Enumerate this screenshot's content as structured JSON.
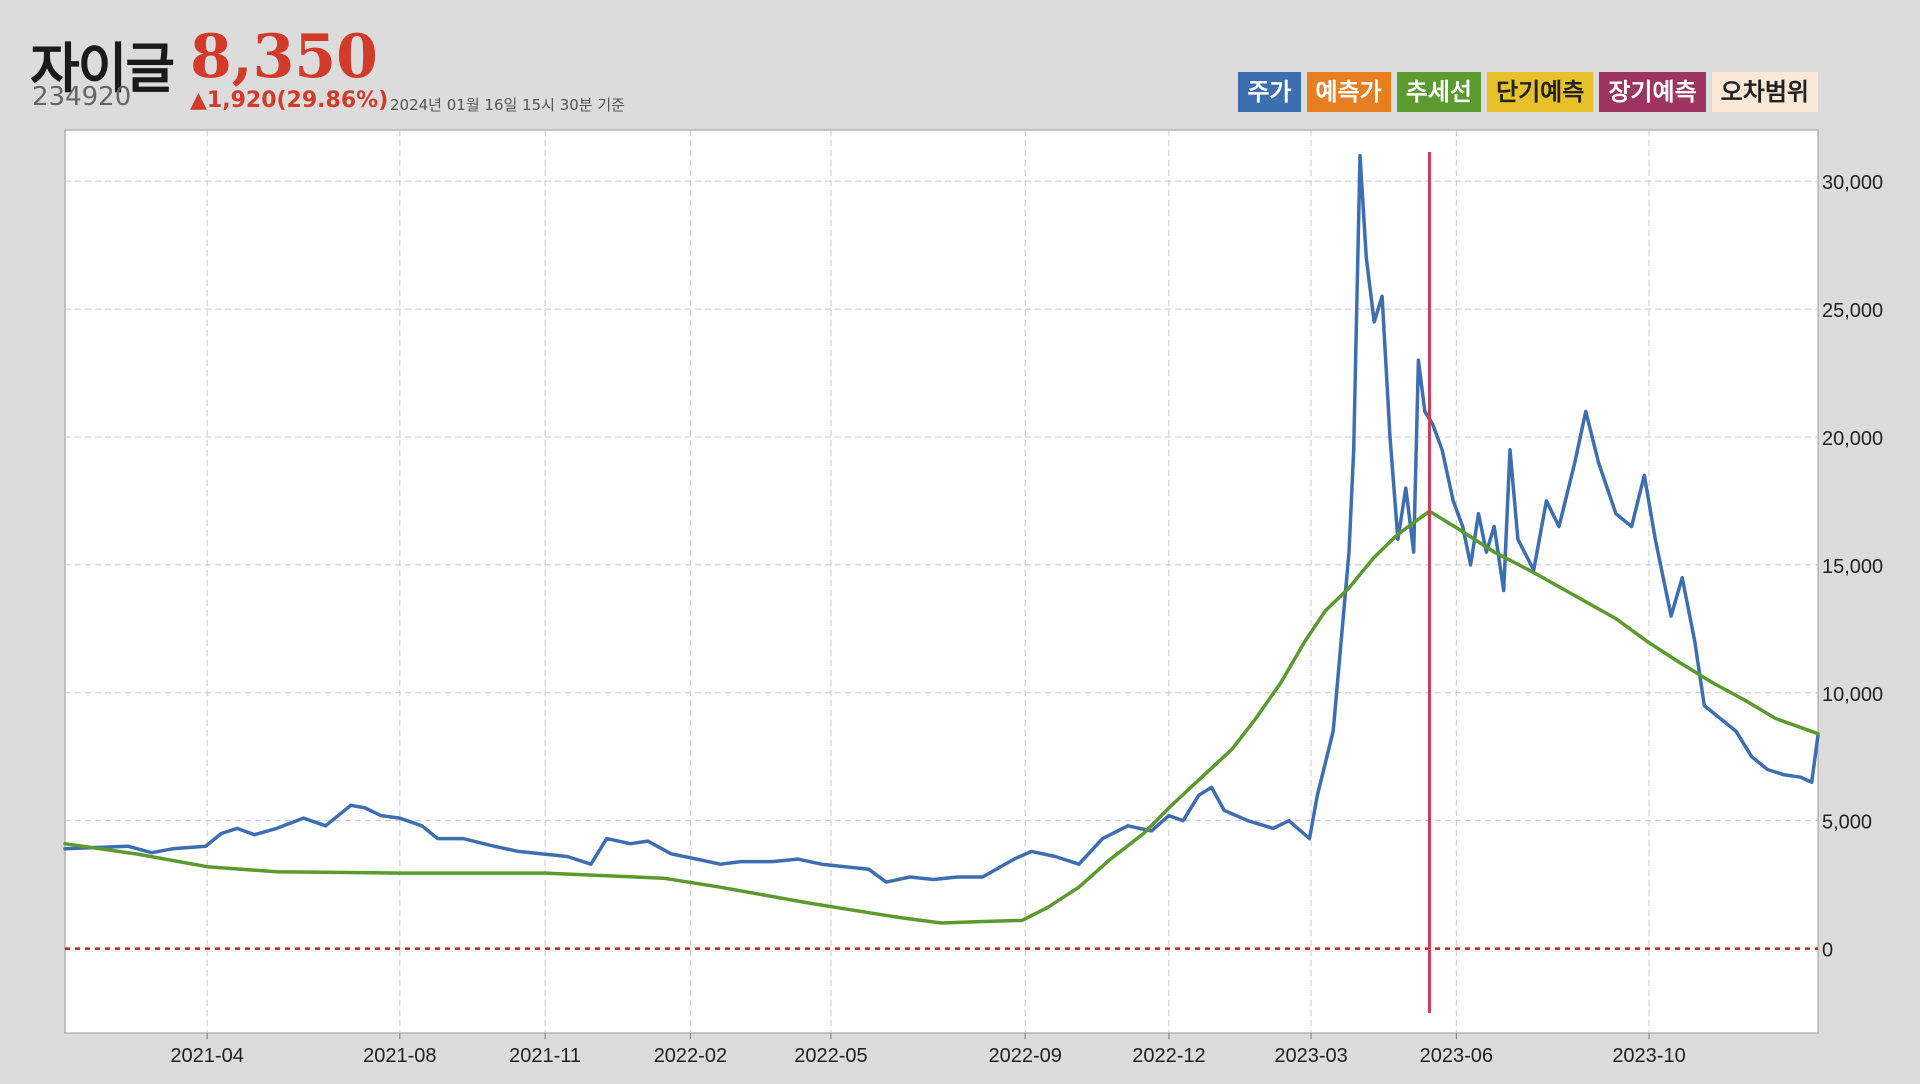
{
  "header": {
    "name": "자이글",
    "price": "8,350",
    "code": "234920",
    "change": "▲1,920(29.86%)",
    "asof": "2024년 01월 16일 15시 30분 기준"
  },
  "legend": [
    {
      "label": "주가",
      "color": "#3d6eb0",
      "text_color": "#ffffff"
    },
    {
      "label": "예측가",
      "color": "#e67e22",
      "text_color": "#ffffff"
    },
    {
      "label": "추세선",
      "color": "#5a9a2f",
      "text_color": "#ffffff"
    },
    {
      "label": "단기예측",
      "color": "#e8c02a",
      "text_color": "#222222"
    },
    {
      "label": "장기예측",
      "color": "#9e3461",
      "text_color": "#ffffff"
    },
    {
      "label": "오차범위",
      "color": "#fbe9d8",
      "text_color": "#222222"
    }
  ],
  "chart_data": {
    "type": "line",
    "ylim": [
      -3300,
      32000
    ],
    "xlim": [
      "2021-01-01",
      "2024-01-16"
    ],
    "y_ticks": [
      0,
      5000,
      10000,
      15000,
      20000,
      25000,
      30000
    ],
    "y_tick_labels": [
      "0",
      "5,000",
      "10,000",
      "15,000",
      "20,000",
      "25,000",
      "30,000"
    ],
    "x_ticks": [
      "2021-04-01",
      "2021-08-01",
      "2021-11-01",
      "2022-02-01",
      "2022-05-01",
      "2022-09-01",
      "2022-12-01",
      "2023-03-01",
      "2023-06-01",
      "2023-10-01"
    ],
    "x_tick_labels": [
      "2021-04",
      "2021-08",
      "2021-11",
      "2022-02",
      "2022-05",
      "2022-09",
      "2022-12",
      "2023-03",
      "2023-06",
      "2023-10"
    ],
    "grid": true,
    "zero_line": {
      "y": 0,
      "color": "#d01c1c"
    },
    "forecast_marker": {
      "x": "2023-05-15",
      "color": "#d23b57"
    },
    "colors": {
      "price": "#3d6eb0",
      "trend": "#5a9a2f"
    },
    "series": [
      {
        "key": "price",
        "points": [
          [
            "2021-01-01",
            3900
          ],
          [
            "2021-01-20",
            3950
          ],
          [
            "2021-02-10",
            4000
          ],
          [
            "2021-02-25",
            3750
          ],
          [
            "2021-03-10",
            3900
          ],
          [
            "2021-03-31",
            4000
          ],
          [
            "2021-04-10",
            4500
          ],
          [
            "2021-04-20",
            4700
          ],
          [
            "2021-05-01",
            4450
          ],
          [
            "2021-05-15",
            4700
          ],
          [
            "2021-06-01",
            5100
          ],
          [
            "2021-06-15",
            4800
          ],
          [
            "2021-07-01",
            5600
          ],
          [
            "2021-07-10",
            5500
          ],
          [
            "2021-07-20",
            5200
          ],
          [
            "2021-08-01",
            5100
          ],
          [
            "2021-08-15",
            4800
          ],
          [
            "2021-08-25",
            4300
          ],
          [
            "2021-09-10",
            4300
          ],
          [
            "2021-09-30",
            4000
          ],
          [
            "2021-10-15",
            3800
          ],
          [
            "2021-10-30",
            3700
          ],
          [
            "2021-11-15",
            3600
          ],
          [
            "2021-11-30",
            3300
          ],
          [
            "2021-12-10",
            4300
          ],
          [
            "2021-12-25",
            4100
          ],
          [
            "2022-01-05",
            4200
          ],
          [
            "2022-01-20",
            3700
          ],
          [
            "2022-02-05",
            3500
          ],
          [
            "2022-02-20",
            3300
          ],
          [
            "2022-03-05",
            3400
          ],
          [
            "2022-03-25",
            3400
          ],
          [
            "2022-04-10",
            3500
          ],
          [
            "2022-04-25",
            3300
          ],
          [
            "2022-05-10",
            3200
          ],
          [
            "2022-05-25",
            3100
          ],
          [
            "2022-06-05",
            2600
          ],
          [
            "2022-06-20",
            2800
          ],
          [
            "2022-07-05",
            2700
          ],
          [
            "2022-07-20",
            2800
          ],
          [
            "2022-08-05",
            2800
          ],
          [
            "2022-08-25",
            3500
          ],
          [
            "2022-09-05",
            3800
          ],
          [
            "2022-09-20",
            3600
          ],
          [
            "2022-10-05",
            3300
          ],
          [
            "2022-10-20",
            4300
          ],
          [
            "2022-11-05",
            4800
          ],
          [
            "2022-11-20",
            4600
          ],
          [
            "2022-12-01",
            5200
          ],
          [
            "2022-12-10",
            5000
          ],
          [
            "2022-12-20",
            6000
          ],
          [
            "2022-12-28",
            6300
          ],
          [
            "2023-01-05",
            5400
          ],
          [
            "2023-01-20",
            5000
          ],
          [
            "2023-02-05",
            4700
          ],
          [
            "2023-02-15",
            5000
          ],
          [
            "2023-02-28",
            4300
          ],
          [
            "2023-03-05",
            6000
          ],
          [
            "2023-03-15",
            8500
          ],
          [
            "2023-03-25",
            15500
          ],
          [
            "2023-03-28",
            19500
          ],
          [
            "2023-04-01",
            31000
          ],
          [
            "2023-04-05",
            27000
          ],
          [
            "2023-04-10",
            24500
          ],
          [
            "2023-04-15",
            25500
          ],
          [
            "2023-04-20",
            20000
          ],
          [
            "2023-04-25",
            16000
          ],
          [
            "2023-04-30",
            18000
          ],
          [
            "2023-05-05",
            15500
          ],
          [
            "2023-05-08",
            23000
          ],
          [
            "2023-05-12",
            21000
          ],
          [
            "2023-05-17",
            20500
          ],
          [
            "2023-05-23",
            19500
          ],
          [
            "2023-05-30",
            17500
          ],
          [
            "2023-06-05",
            16500
          ],
          [
            "2023-06-10",
            15000
          ],
          [
            "2023-06-15",
            17000
          ],
          [
            "2023-06-20",
            15500
          ],
          [
            "2023-06-25",
            16500
          ],
          [
            "2023-07-01",
            14000
          ],
          [
            "2023-07-05",
            19500
          ],
          [
            "2023-07-10",
            16000
          ],
          [
            "2023-07-20",
            14800
          ],
          [
            "2023-07-28",
            17500
          ],
          [
            "2023-08-05",
            16500
          ],
          [
            "2023-08-15",
            19000
          ],
          [
            "2023-08-22",
            21000
          ],
          [
            "2023-08-30",
            19000
          ],
          [
            "2023-09-10",
            17000
          ],
          [
            "2023-09-20",
            16500
          ],
          [
            "2023-09-28",
            18500
          ],
          [
            "2023-10-05",
            16000
          ],
          [
            "2023-10-15",
            13000
          ],
          [
            "2023-10-22",
            14500
          ],
          [
            "2023-10-30",
            12000
          ],
          [
            "2023-11-05",
            9500
          ],
          [
            "2023-11-15",
            9000
          ],
          [
            "2023-11-25",
            8500
          ],
          [
            "2023-12-05",
            7500
          ],
          [
            "2023-12-15",
            7000
          ],
          [
            "2023-12-25",
            6800
          ],
          [
            "2024-01-05",
            6700
          ],
          [
            "2024-01-12",
            6500
          ],
          [
            "2024-01-16",
            8350
          ]
        ]
      },
      {
        "key": "trend",
        "points": [
          [
            "2021-01-01",
            4100
          ],
          [
            "2021-02-15",
            3700
          ],
          [
            "2021-04-01",
            3200
          ],
          [
            "2021-05-15",
            3000
          ],
          [
            "2021-08-01",
            2950
          ],
          [
            "2021-11-01",
            2950
          ],
          [
            "2022-01-15",
            2750
          ],
          [
            "2022-02-20",
            2400
          ],
          [
            "2022-04-15",
            1800
          ],
          [
            "2022-05-15",
            1500
          ],
          [
            "2022-06-15",
            1200
          ],
          [
            "2022-07-10",
            1000
          ],
          [
            "2022-08-01",
            1050
          ],
          [
            "2022-08-30",
            1100
          ],
          [
            "2022-09-15",
            1600
          ],
          [
            "2022-10-05",
            2400
          ],
          [
            "2022-10-25",
            3500
          ],
          [
            "2022-11-15",
            4500
          ],
          [
            "2022-12-01",
            5500
          ],
          [
            "2022-12-20",
            6600
          ],
          [
            "2023-01-10",
            7800
          ],
          [
            "2023-01-25",
            9000
          ],
          [
            "2023-02-10",
            10400
          ],
          [
            "2023-02-25",
            12000
          ],
          [
            "2023-03-10",
            13200
          ],
          [
            "2023-03-25",
            14100
          ],
          [
            "2023-04-10",
            15300
          ],
          [
            "2023-04-25",
            16200
          ],
          [
            "2023-05-15",
            17100
          ],
          [
            "2023-06-05",
            16300
          ],
          [
            "2023-06-25",
            15500
          ],
          [
            "2023-07-20",
            14700
          ],
          [
            "2023-08-15",
            13800
          ],
          [
            "2023-09-10",
            12900
          ],
          [
            "2023-09-30",
            12000
          ],
          [
            "2023-10-20",
            11200
          ],
          [
            "2023-11-10",
            10400
          ],
          [
            "2023-12-01",
            9700
          ],
          [
            "2023-12-20",
            9000
          ],
          [
            "2024-01-16",
            8400
          ]
        ]
      }
    ]
  }
}
